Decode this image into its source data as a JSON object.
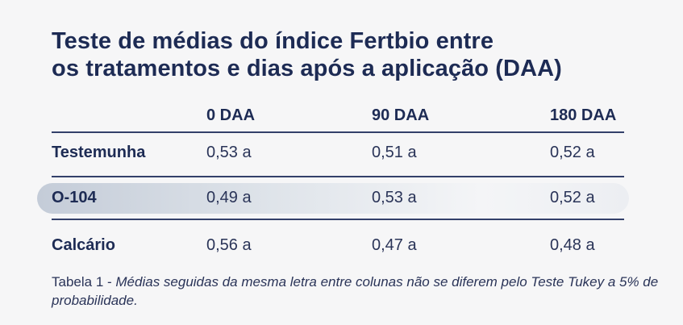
{
  "title": {
    "line1": "Teste de médias do índice Fertbio entre",
    "line2": "os tratamentos e dias após a aplicação (DAA)"
  },
  "table": {
    "columns": [
      "0 DAA",
      "90 DAA",
      "180 DAA"
    ],
    "rows": [
      {
        "label": "Testemunha",
        "values": [
          "0,53 a",
          "0,51 a",
          "0,52 a"
        ],
        "highlighted": false
      },
      {
        "label": "O-104",
        "values": [
          "0,49 a",
          "0,53 a",
          "0,52 a"
        ],
        "highlighted": true
      },
      {
        "label": "Calcário",
        "values": [
          "0,56 a",
          "0,47 a",
          "0,48 a"
        ],
        "highlighted": false
      }
    ]
  },
  "caption": {
    "prefix": "Tabela 1 - ",
    "text": "Médias seguidas da mesma letra entre colunas não se diferem pelo Teste Tukey a 5% de probabilidade."
  },
  "colors": {
    "title": "#1d2b54",
    "rule": "#33406a",
    "highlight_start": "#c4ccd8",
    "background": "#f6f6f7"
  }
}
